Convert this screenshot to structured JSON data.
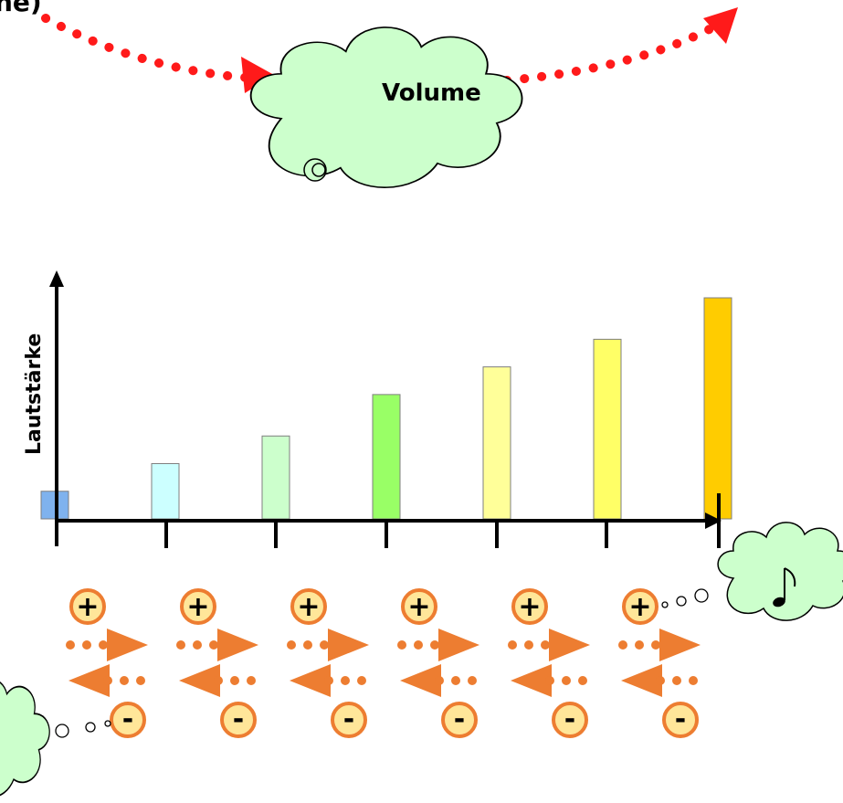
{
  "header_fragment": "ne)",
  "volume_cloud": {
    "label": "Volume"
  },
  "chart_data": {
    "type": "bar",
    "ylabel": "Lautstärke",
    "xlabel": "",
    "categories": [
      "",
      "",
      "",
      "",
      "",
      "",
      ""
    ],
    "values": [
      1,
      2,
      3,
      4.5,
      5.5,
      6.5,
      8
    ],
    "ylim": [
      0,
      8
    ],
    "bar_colors": [
      "#7fb2ee",
      "#ccffff",
      "#ccffcc",
      "#99ff66",
      "#ffff99",
      "#ffff66",
      "#ffcc00"
    ],
    "grid": false
  },
  "steps": {
    "plus_symbol": "+",
    "minus_symbol": "-",
    "count": 6
  },
  "note_cloud": {
    "icon": "music-note-icon",
    "glyph": "♪"
  },
  "colors": {
    "cloud_fill": "#ccffcc",
    "dotted_arrow": "#ff1a1a",
    "step_arrow": "#ed7d31",
    "step_circle_fill": "#ffe699",
    "step_circle_stroke": "#ed7d31"
  }
}
